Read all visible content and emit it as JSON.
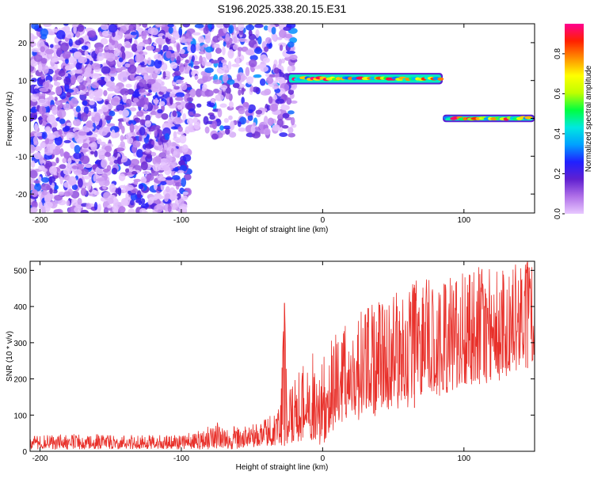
{
  "title": "S196.2025.338.20.15.E31",
  "colorbar": {
    "label": "Normalized spectral amplitude",
    "ticks": [
      "0.0",
      "0.2",
      "0.4",
      "0.6",
      "0.8"
    ],
    "tick_values": [
      0.0,
      0.2,
      0.4,
      0.6,
      0.8
    ],
    "range": [
      0,
      0.95
    ],
    "colormap": [
      "#e8c8ff",
      "#b070e8",
      "#6020d0",
      "#2020ff",
      "#00a0ff",
      "#00e8e0",
      "#00ff40",
      "#c0ff00",
      "#ffff00",
      "#ff9000",
      "#ff2000",
      "#ff0090"
    ]
  },
  "chart_data": [
    {
      "type": "heatmap",
      "xlabel": "Height of straight line (km)",
      "ylabel": "Frequency (Hz)",
      "xlim": [
        -207,
        150
      ],
      "ylim": [
        -25,
        25
      ],
      "x_ticks": [
        -200,
        -100,
        0,
        100
      ],
      "x_tick_labels": [
        "-200",
        "-100",
        "0",
        "100"
      ],
      "y_ticks": [
        -20,
        -10,
        0,
        10,
        20
      ],
      "y_tick_labels": [
        "-20",
        "-10",
        "0",
        "10",
        "20"
      ],
      "regions": [
        {
          "description": "diffuse low amplitude noise",
          "x": [
            -207,
            -95
          ],
          "y": [
            -25,
            25
          ],
          "amplitude": [
            0.0,
            0.3
          ]
        },
        {
          "description": "scattered transition blobs",
          "x": [
            -95,
            -20
          ],
          "y": [
            -5,
            25
          ],
          "amplitude": [
            0.0,
            0.35
          ]
        },
        {
          "description": "high amplitude line",
          "x": [
            -25,
            85
          ],
          "y": [
            9,
            12
          ],
          "amplitude": [
            0.3,
            0.95
          ]
        },
        {
          "description": "high amplitude line",
          "x": [
            85,
            150
          ],
          "y": [
            -1,
            1
          ],
          "amplitude": [
            0.3,
            0.95
          ]
        }
      ]
    },
    {
      "type": "line",
      "xlabel": "Height of straight line (km)",
      "ylabel": "SNR (10 * v/v)",
      "xlim": [
        -207,
        150
      ],
      "ylim": [
        0,
        525
      ],
      "x_ticks": [
        -200,
        -100,
        0,
        100
      ],
      "x_tick_labels": [
        "-200",
        "-100",
        "0",
        "100"
      ],
      "y_ticks": [
        0,
        100,
        200,
        300,
        400,
        500
      ],
      "y_tick_labels": [
        "0",
        "100",
        "200",
        "300",
        "400",
        "500"
      ],
      "series": [
        {
          "color": "#e8302a",
          "x": [
            -207,
            -200,
            -190,
            -180,
            -170,
            -160,
            -150,
            -140,
            -130,
            -120,
            -110,
            -100,
            -90,
            -80,
            -75,
            -70,
            -60,
            -50,
            -45,
            -40,
            -35,
            -30,
            -27,
            -25,
            -20,
            -15,
            -10,
            -5,
            0,
            5,
            10,
            20,
            30,
            40,
            50,
            60,
            65,
            70,
            80,
            90,
            100,
            110,
            120,
            130,
            140,
            145,
            148,
            150
          ],
          "y": [
            20,
            20,
            20,
            21,
            20,
            21,
            20,
            21,
            20,
            20,
            20,
            22,
            24,
            30,
            38,
            28,
            30,
            32,
            34,
            40,
            45,
            50,
            410,
            55,
            70,
            90,
            110,
            120,
            110,
            140,
            160,
            180,
            200,
            210,
            230,
            240,
            460,
            260,
            260,
            270,
            280,
            290,
            300,
            310,
            320,
            530,
            330,
            320
          ],
          "min_y": [
            5,
            5,
            5,
            5,
            5,
            5,
            5,
            5,
            5,
            5,
            5,
            5,
            5,
            5,
            5,
            5,
            5,
            8,
            10,
            12,
            15,
            15,
            15,
            15,
            20,
            25,
            30,
            30,
            10,
            50,
            60,
            80,
            90,
            100,
            110,
            120,
            120,
            140,
            150,
            160,
            170,
            180,
            190,
            200,
            230,
            230,
            230,
            250
          ],
          "max_y": [
            40,
            45,
            45,
            50,
            45,
            48,
            45,
            47,
            45,
            45,
            48,
            50,
            52,
            75,
            88,
            65,
            70,
            75,
            78,
            90,
            110,
            130,
            410,
            170,
            200,
            230,
            260,
            280,
            260,
            300,
            330,
            360,
            400,
            420,
            440,
            460,
            470,
            480,
            470,
            480,
            500,
            510,
            520,
            510,
            520,
            530,
            520,
            470
          ]
        }
      ]
    }
  ]
}
